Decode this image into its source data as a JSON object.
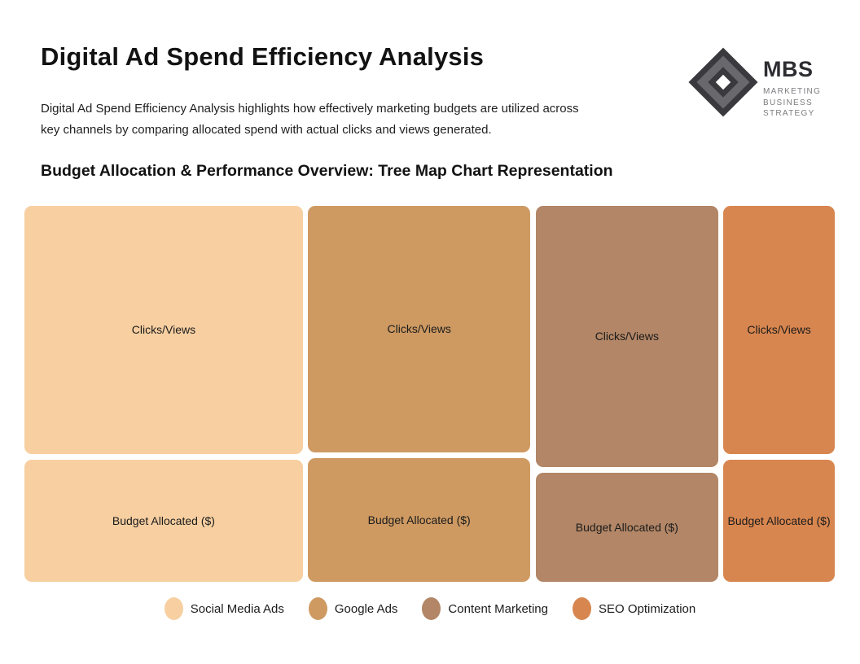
{
  "page": {
    "title": "Digital Ad Spend Efficiency Analysis",
    "description_lines": [
      "Digital Ad Spend Efficiency Analysis highlights how effectively marketing budgets are utilized across",
      "key channels by comparing allocated spend with actual clicks and views generated."
    ],
    "section_heading": "Budget Allocation & Performance Overview: Tree Map Chart Representation",
    "background_color": "#ffffff"
  },
  "logo": {
    "acronym": "MBS",
    "tagline": [
      "MARKETING",
      "BUSINESS",
      "STRATEGY"
    ],
    "dark_color": "#3a393d",
    "gray_color": "#69686d"
  },
  "chart_data": {
    "type": "treemap",
    "title": "Budget Allocation & Performance Overview: Tree Map Chart Representation",
    "metrics": [
      "Clicks/Views",
      "Budget Allocated ($)"
    ],
    "cell_labels": {
      "top": "Clicks/Views",
      "bottom": "Budget Allocated ($)"
    },
    "legend_position": "bottom-center",
    "values_labeled_numerically": false,
    "channels": [
      {
        "name": "Social Media Ads",
        "color": "#F7CFA1",
        "total_share": 0.35,
        "clicks_views_share": 0.67,
        "budget_share": 0.33
      },
      {
        "name": "Google Ads",
        "color": "#CE9A62",
        "total_share": 0.28,
        "clicks_views_share": 0.665,
        "budget_share": 0.335
      },
      {
        "name": "Content Marketing",
        "color": "#B28666",
        "total_share": 0.23,
        "clicks_views_share": 0.705,
        "budget_share": 0.295
      },
      {
        "name": "SEO Optimization",
        "color": "#D8864F",
        "total_share": 0.14,
        "clicks_views_share": 0.67,
        "budget_share": 0.33
      }
    ]
  }
}
